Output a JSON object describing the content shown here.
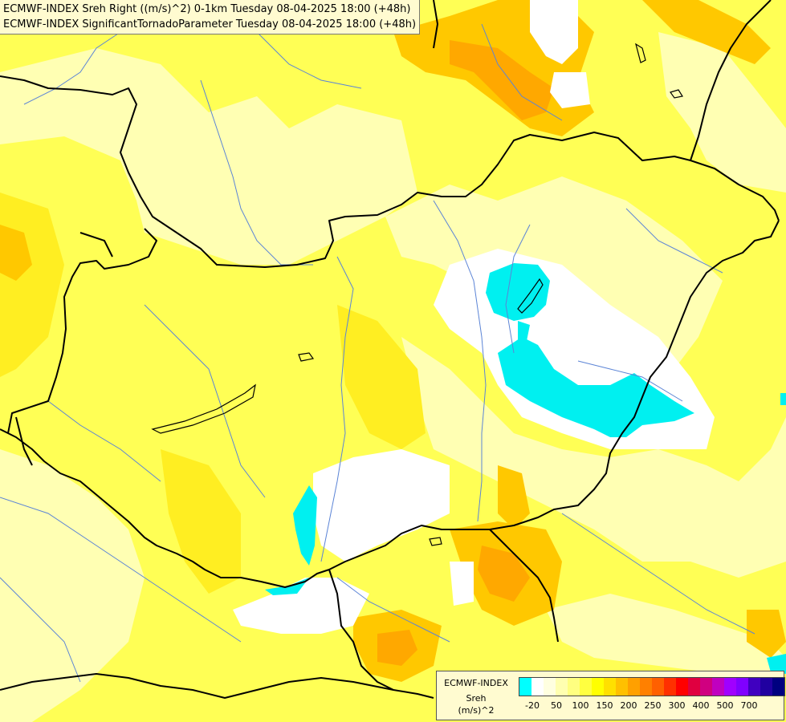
{
  "header": {
    "line1": "ECMWF-INDEX Sreh Right ((m/s)^2) 0-1km Tuesday 08-04-2025 18:00 (+48h)",
    "line2": "ECMWF-INDEX SignificantTornadoParameter Tuesday 08-04-2025 18:00 (+48h)"
  },
  "legend": {
    "title": "ECMWF-INDEX",
    "variable": "Sreh",
    "unit": "(m/s)^2",
    "colors": [
      "#00ffff",
      "#ffffff",
      "#ffffe0",
      "#ffffb0",
      "#ffff80",
      "#ffff40",
      "#ffff00",
      "#ffe000",
      "#ffc000",
      "#ffa000",
      "#ff8000",
      "#ff6000",
      "#ff3000",
      "#ff0000",
      "#e00040",
      "#d00080",
      "#c000c0",
      "#a000ff",
      "#8000ff",
      "#4000c0",
      "#2000a0",
      "#000080"
    ],
    "ticks": [
      {
        "label": "-20",
        "slot": 1
      },
      {
        "label": "50",
        "slot": 3
      },
      {
        "label": "100",
        "slot": 5
      },
      {
        "label": "150",
        "slot": 7
      },
      {
        "label": "200",
        "slot": 9
      },
      {
        "label": "250",
        "slot": 11
      },
      {
        "label": "300",
        "slot": 13
      },
      {
        "label": "400",
        "slot": 15
      },
      {
        "label": "500",
        "slot": 17
      },
      {
        "label": "700",
        "slot": 19
      }
    ]
  },
  "map": {
    "region": "Hungary and surroundings",
    "colors": {
      "ocean_default": "#ffff66",
      "light": "#ffffcc",
      "pale": "#ffffa0",
      "yellow": "#ffff33",
      "gold": "#ffd700",
      "orange": "#ffb000",
      "white": "#ffffff",
      "cyan": "#00f0f0",
      "border": "#000000",
      "river": "#5b84d6"
    }
  }
}
